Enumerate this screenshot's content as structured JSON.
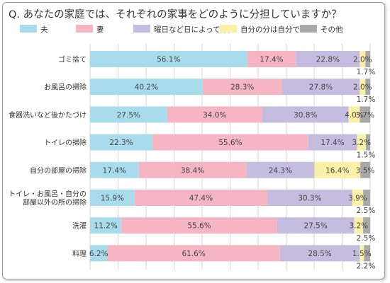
{
  "chart_data": {
    "type": "bar",
    "orientation": "horizontal",
    "stacked": true,
    "title": "Q. あなたの家庭では、それぞれの家事をどのように分担していますか？",
    "legend_position": "top",
    "grid": true,
    "xlim": [
      0,
      100
    ],
    "categories": [
      "ゴミ捨て",
      "お風呂の掃除",
      "食器洗いなど後かたづけ",
      "トイレの掃除",
      "自分の部屋の掃除",
      "トイレ・お風呂・自分の部屋以外の所の掃除",
      "洗濯",
      "料理"
    ],
    "category_lines": [
      [
        "ゴミ捨て"
      ],
      [
        "お風呂の掃除"
      ],
      [
        "食器洗いなど後かたづけ"
      ],
      [
        "トイレの掃除"
      ],
      [
        "自分の部屋の掃除"
      ],
      [
        "トイレ・お風呂・自分の",
        "部屋以外の所の掃除"
      ],
      [
        "洗濯"
      ],
      [
        "料理"
      ]
    ],
    "series": [
      {
        "name": "夫",
        "color": "#a8dcec",
        "values": [
          56.1,
          40.2,
          27.5,
          22.3,
          17.4,
          15.9,
          11.2,
          6.2
        ],
        "labels": [
          "56.1%",
          "40.2%",
          "27.5%",
          "22.3%",
          "17.4%",
          "15.9%",
          "11.2%",
          "6.2%"
        ]
      },
      {
        "name": "妻",
        "color": "#f5b5c3",
        "values": [
          17.4,
          28.3,
          34.0,
          55.6,
          38.4,
          47.4,
          55.6,
          61.6
        ],
        "labels": [
          "17.4%",
          "28.3%",
          "34.0%",
          "55.6%",
          "38.4%",
          "47.4%",
          "55.6%",
          "61.6%"
        ]
      },
      {
        "name": "曜日など日によって分担",
        "color": "#c4bddf",
        "values": [
          22.8,
          27.8,
          30.8,
          17.4,
          24.3,
          30.3,
          27.5,
          28.5
        ],
        "labels": [
          "22.8%",
          "27.8%",
          "30.8%",
          "17.4%",
          "24.3%",
          "30.3%",
          "27.5%",
          "28.5%"
        ]
      },
      {
        "name": "自分の分は自分で",
        "color": "#faf0a8",
        "values": [
          2.0,
          2.0,
          4.0,
          3.2,
          16.4,
          3.9,
          3.2,
          1.5
        ],
        "labels": [
          "2.0%",
          "2.0%",
          "4.0%",
          "3.2%",
          "16.4%",
          "3.9%",
          "3.2%",
          "1.5%"
        ]
      },
      {
        "name": "その他",
        "color": "#a9a9a9",
        "values": [
          1.7,
          1.7,
          3.7,
          1.5,
          3.5,
          2.5,
          2.5,
          2.2
        ],
        "labels": [
          "1.7%",
          "1.7%",
          "3.7%",
          "1.5%",
          "3.5%",
          "2.5%",
          "2.5%",
          "2.2%"
        ]
      }
    ],
    "grid_color": "#cccccc"
  }
}
